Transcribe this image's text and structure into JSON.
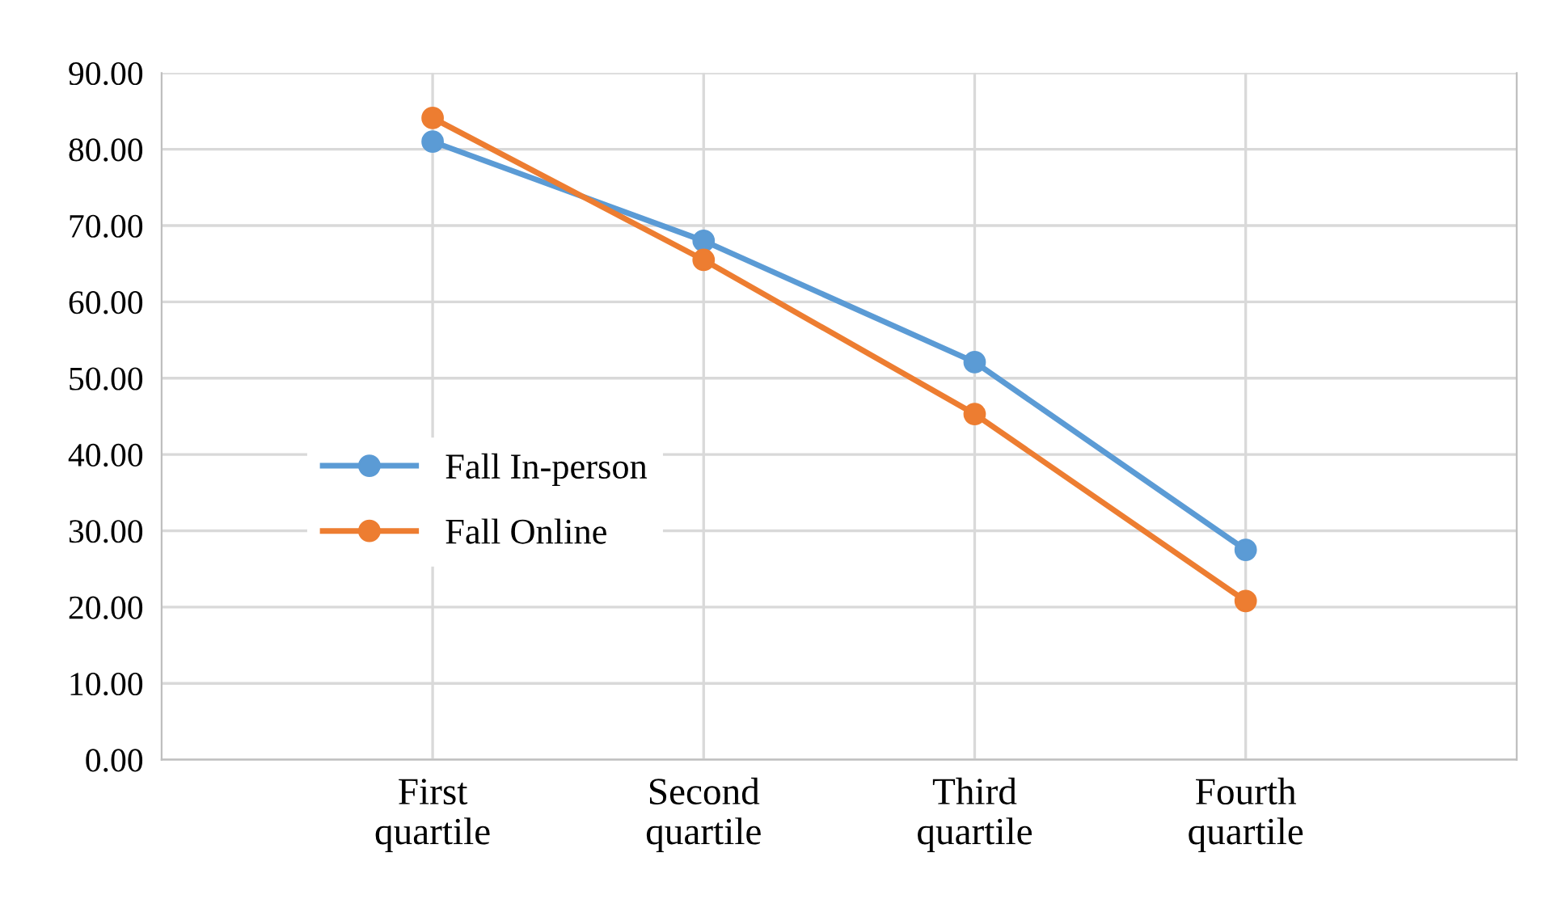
{
  "chart_data": {
    "type": "line",
    "categories": [
      "First\nquartile",
      "Second\nquartile",
      "Third\nquartile",
      "Fourth\nquartile"
    ],
    "series": [
      {
        "name": "Fall In-person",
        "color": "#5b9bd5",
        "values": [
          81.0,
          68.0,
          52.1,
          27.5
        ]
      },
      {
        "name": "Fall Online",
        "color": "#ed7d31",
        "values": [
          84.1,
          65.5,
          45.3,
          20.8
        ]
      }
    ],
    "ylim": [
      0,
      90
    ],
    "yticks": [
      {
        "value": 0,
        "label": "0.00"
      },
      {
        "value": 10,
        "label": "10.00"
      },
      {
        "value": 20,
        "label": "20.00"
      },
      {
        "value": 30,
        "label": "30.00"
      },
      {
        "value": 40,
        "label": "40.00"
      },
      {
        "value": 50,
        "label": "50.00"
      },
      {
        "value": 60,
        "label": "60.00"
      },
      {
        "value": 70,
        "label": "70.00"
      },
      {
        "value": 80,
        "label": "80.00"
      },
      {
        "value": 90,
        "label": "90.00"
      }
    ],
    "grid": true,
    "legend": "left",
    "marker": "circle",
    "line_style": "solid"
  }
}
